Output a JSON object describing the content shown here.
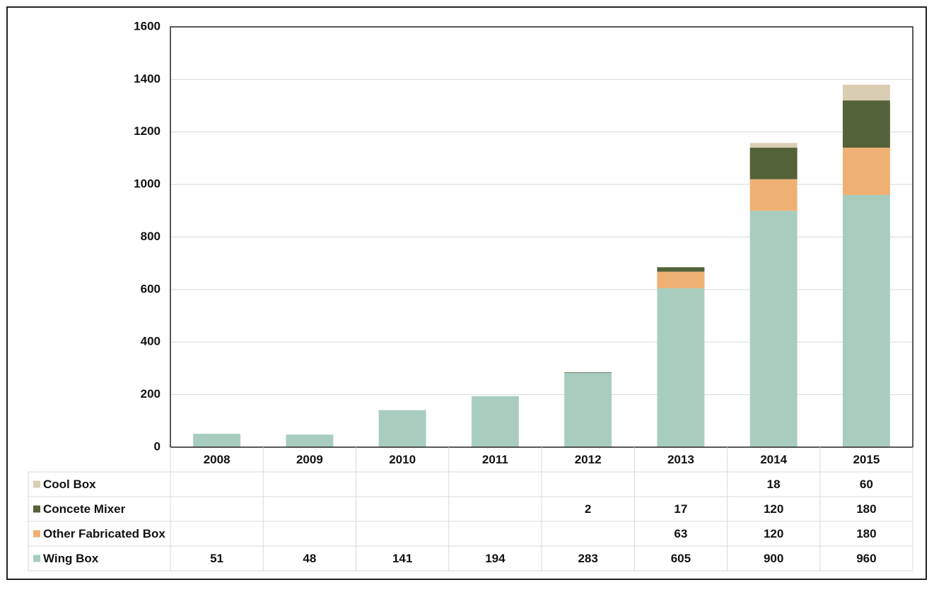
{
  "chart_data": {
    "type": "bar",
    "stacked": true,
    "categories": [
      "2008",
      "2009",
      "2010",
      "2011",
      "2012",
      "2013",
      "2014",
      "2015"
    ],
    "series": [
      {
        "name": "Wing Box",
        "color": "#a8cdbf",
        "values": [
          51,
          48,
          141,
          194,
          283,
          605,
          900,
          960
        ]
      },
      {
        "name": "Other Fabricated Box",
        "color": "#efb173",
        "values": [
          null,
          null,
          null,
          null,
          null,
          63,
          120,
          180
        ]
      },
      {
        "name": "Concete Mixer",
        "color": "#546239",
        "values": [
          null,
          null,
          null,
          null,
          2,
          17,
          120,
          180
        ]
      },
      {
        "name": "Cool Box",
        "color": "#d9cdb4",
        "values": [
          null,
          null,
          null,
          null,
          null,
          null,
          18,
          60
        ]
      }
    ],
    "ylim": [
      0,
      1600
    ],
    "yticks": [
      0,
      200,
      400,
      600,
      800,
      1000,
      1200,
      1400,
      1600
    ],
    "grid": true
  }
}
